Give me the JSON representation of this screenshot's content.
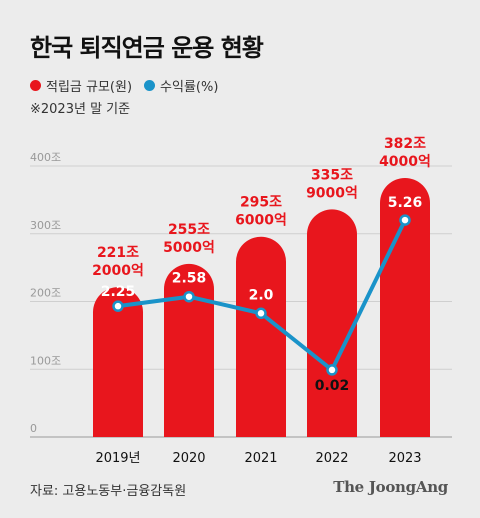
{
  "header": {
    "title": "한국 퇴직연금 운용 현황",
    "note": "※2023년 말 기준"
  },
  "legend": [
    {
      "label": "적립금 규모(원)",
      "color": "#e8161d"
    },
    {
      "label": "수익률(%)",
      "color": "#1a93c9"
    }
  ],
  "chart_data": {
    "type": "bar",
    "categories": [
      "2019년",
      "2020",
      "2021",
      "2022",
      "2023"
    ],
    "yticks": [
      "0",
      "100조",
      "200조",
      "300조",
      "400조"
    ],
    "ylim": [
      0,
      400
    ],
    "series": [
      {
        "name": "적립금 규모(원)",
        "type": "bar",
        "color": "#e8161d",
        "values": [
          221.2,
          255.5,
          295.6,
          335.9,
          382.4
        ],
        "labels": [
          [
            "221조",
            "2000억"
          ],
          [
            "255조",
            "5000억"
          ],
          [
            "295조",
            "6000억"
          ],
          [
            "335조",
            "9000억"
          ],
          [
            "382조",
            "4000억"
          ]
        ]
      },
      {
        "name": "수익률(%)",
        "type": "line",
        "color": "#1a93c9",
        "values": [
          2.25,
          2.58,
          2.0,
          0.02,
          5.26
        ],
        "labels": [
          "2.25",
          "2.58",
          "2.0",
          "0.02",
          "5.26"
        ]
      }
    ],
    "grid": true
  },
  "footer": {
    "source": "자료: 고용노동부·금융감독원",
    "brand": "The JoongAng"
  }
}
